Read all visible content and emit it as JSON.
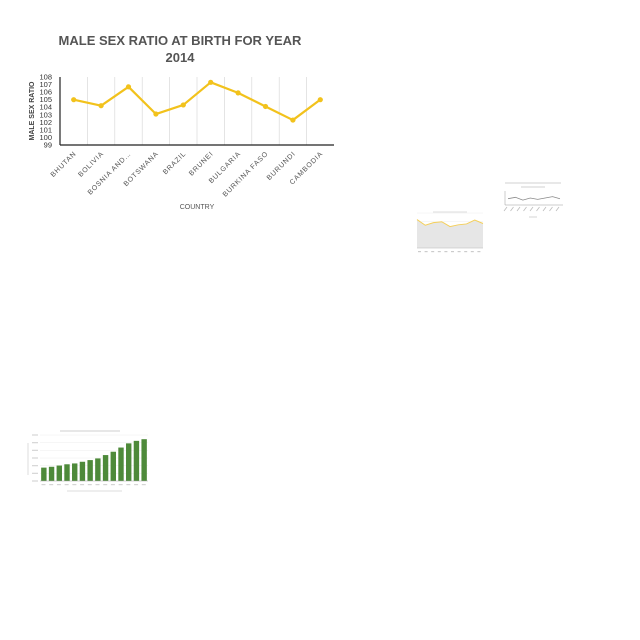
{
  "chart_data": [
    {
      "type": "line",
      "title_line1": "MALE SEX RATIO AT BIRTH FOR YEAR",
      "title_line2": "2014",
      "xlabel": "COUNTRY",
      "ylabel": "MALE SEX RATIO",
      "categories": [
        "BHUTAN",
        "BOLIVIA",
        "BOSNIA AND…",
        "BOTSWANA",
        "BRAZIL",
        "BRUNEI",
        "BULGARIA",
        "BURKINA FASO",
        "BURUNDI",
        "CAMBODIA"
      ],
      "values": [
        105.0,
        104.2,
        106.7,
        103.1,
        104.3,
        107.3,
        105.9,
        104.1,
        102.3,
        105.0
      ],
      "ylim": [
        99,
        108
      ],
      "yticks": [
        "99",
        "100",
        "101",
        "102",
        "103",
        "104",
        "105",
        "106",
        "107",
        "108"
      ],
      "line_color": "#f2c21c",
      "grid": "vertical"
    },
    {
      "type": "area",
      "values": [
        6.5,
        5.2,
        5.8,
        6.0,
        4.9,
        5.3,
        5.5,
        6.4,
        5.6
      ],
      "color": "#f4cf5a"
    },
    {
      "type": "line",
      "values": [
        4.4,
        4.6,
        4.2,
        4.5,
        4.3,
        4.5,
        4.7,
        4.4
      ],
      "color": "#8a8a8a"
    },
    {
      "type": "bar",
      "values": [
        16000,
        17000,
        18500,
        20000,
        21000,
        23000,
        25000,
        27000,
        31000,
        35000,
        40000,
        45000,
        48000,
        50000
      ],
      "color": "#4e8a3a"
    }
  ]
}
